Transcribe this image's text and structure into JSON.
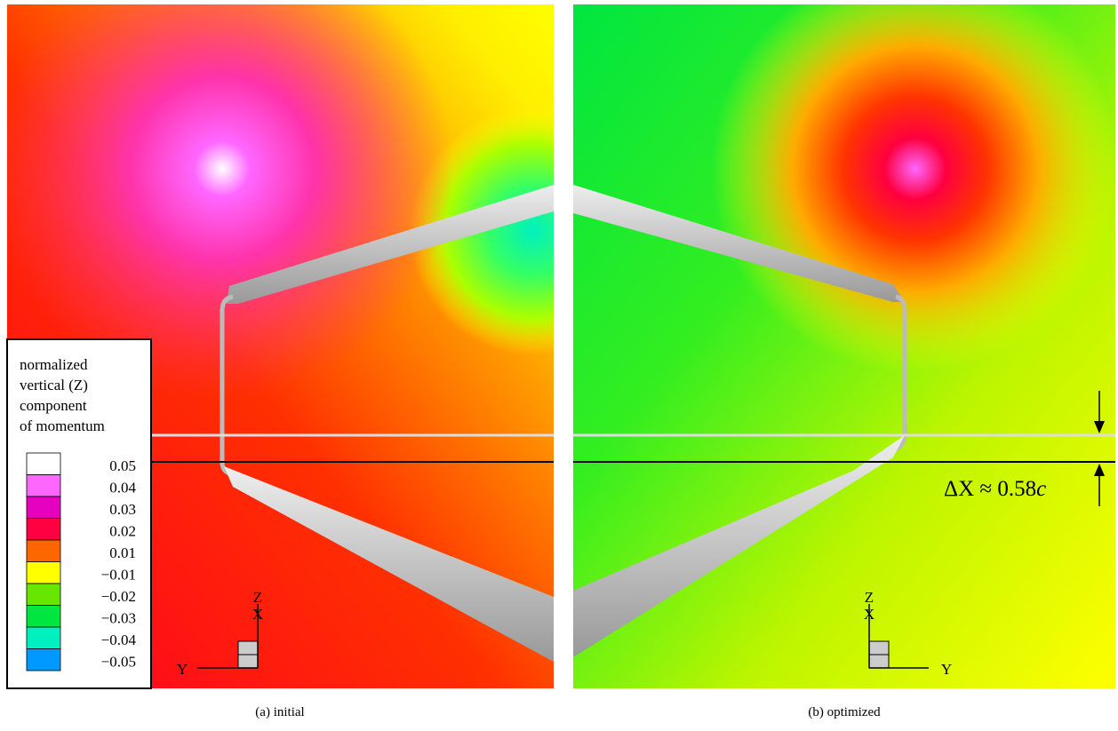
{
  "legend": {
    "title": [
      "normalized",
      "vertical (Z)",
      "component",
      "of momentum"
    ],
    "entries": [
      {
        "label": "0.05",
        "color": "#ffffff"
      },
      {
        "label": "0.04",
        "color": "#ff66ff"
      },
      {
        "label": "0.03",
        "color": "#e600c0"
      },
      {
        "label": "0.02",
        "color": "#ff0040"
      },
      {
        "label": "0.01",
        "color": "#ff6600"
      },
      {
        "label": "−0.01",
        "color": "#ffff00"
      },
      {
        "label": "−0.02",
        "color": "#66e600"
      },
      {
        "label": "−0.03",
        "color": "#00e640"
      },
      {
        "label": "−0.04",
        "color": "#00f0c0"
      },
      {
        "label": "−0.05",
        "color": "#0099ff"
      }
    ]
  },
  "panels": [
    {
      "caption": "(a) initial",
      "axes": {
        "z": "Z",
        "x": "X",
        "y": "Y"
      }
    },
    {
      "caption": "(b) optimized",
      "axes": {
        "z": "Z",
        "x": "X",
        "y": "Y"
      }
    }
  ],
  "annotation": {
    "text": "ΔX ≈ 0.58",
    "italic": "c"
  }
}
